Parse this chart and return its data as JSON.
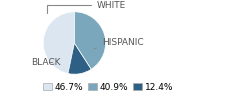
{
  "labels": [
    "WHITE",
    "HISPANIC",
    "BLACK"
  ],
  "values": [
    46.7,
    12.4,
    40.9
  ],
  "colors": [
    "#dce6f0",
    "#2e6085",
    "#7ba7bc"
  ],
  "legend_labels": [
    "46.7%",
    "40.9%",
    "12.4%"
  ],
  "legend_colors": [
    "#dce6f0",
    "#7ba7bc",
    "#2e6085"
  ],
  "startangle": 90,
  "background_color": "#ffffff",
  "label_fontsize": 6.5,
  "legend_fontsize": 6.5
}
